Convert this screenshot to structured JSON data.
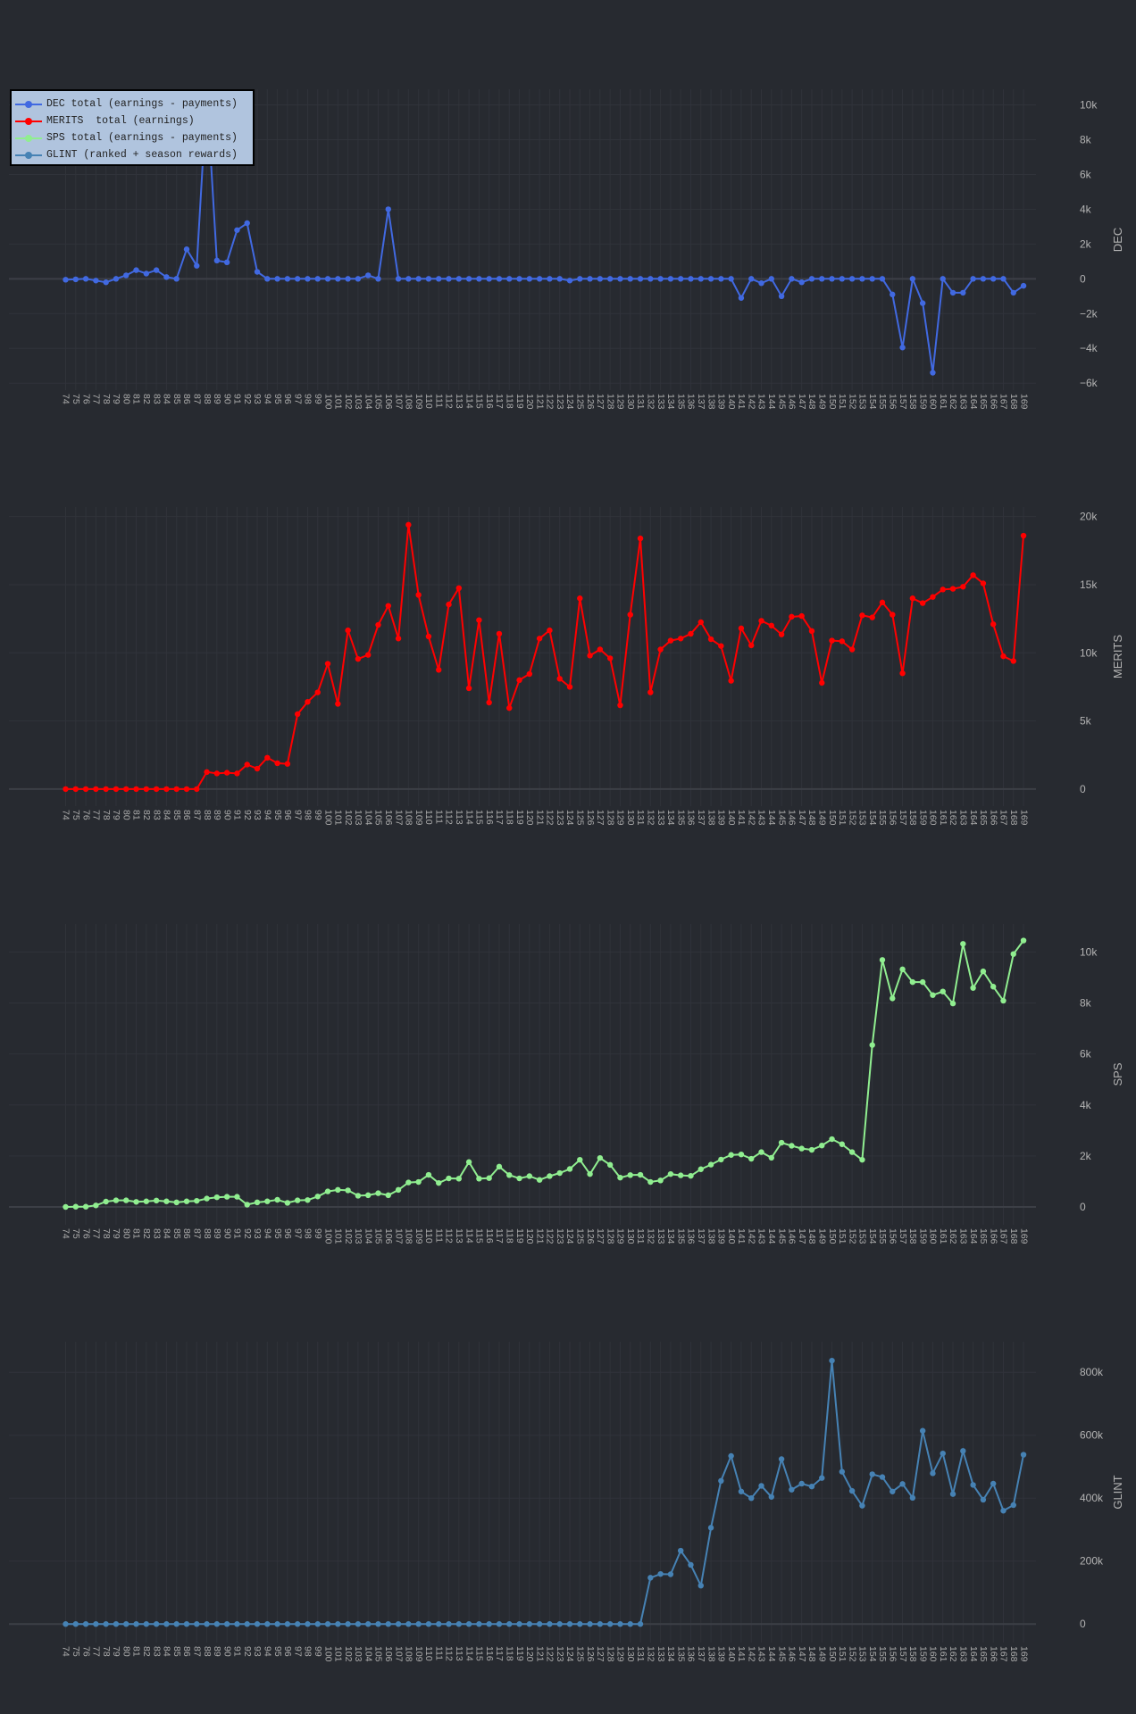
{
  "legend": [
    {
      "label": "DEC total (earnings - payments)",
      "color": "#4169e1"
    },
    {
      "label": "MERITS  total (earnings)",
      "color": "#ff0000"
    },
    {
      "label": "SPS total (earnings - payments)",
      "color": "#90ee90"
    },
    {
      "label": "GLINT (ranked + season rewards)",
      "color": "#4682b4"
    }
  ],
  "chart_data": [
    {
      "type": "line",
      "ylabel": "DEC",
      "color": "#4169e1",
      "grid": true,
      "legend": "top-left",
      "ylim": [
        -6400,
        10900
      ],
      "yticks": [
        {
          "v": -6000,
          "label": "−6k"
        },
        {
          "v": -4000,
          "label": "−4k"
        },
        {
          "v": -2000,
          "label": "−2k"
        },
        {
          "v": 0,
          "label": "0"
        },
        {
          "v": 2000,
          "label": "2k"
        },
        {
          "v": 4000,
          "label": "4k"
        },
        {
          "v": 6000,
          "label": "6k"
        },
        {
          "v": 8000,
          "label": "8k"
        },
        {
          "v": 10000,
          "label": "10k"
        }
      ],
      "values": [
        -50,
        -30,
        0,
        -100,
        -200,
        0,
        200,
        500,
        300,
        500,
        100,
        0,
        1700,
        750,
        10700,
        1050,
        950,
        2800,
        3200,
        400,
        0,
        0,
        0,
        0,
        0,
        0,
        0,
        0,
        0,
        0,
        200,
        0,
        4000,
        0,
        0,
        0,
        0,
        0,
        0,
        0,
        0,
        0,
        0,
        0,
        0,
        0,
        0,
        0,
        0,
        0,
        -100,
        0,
        0,
        0,
        0,
        0,
        0,
        0,
        0,
        0,
        0,
        0,
        0,
        0,
        0,
        0,
        0,
        -1100,
        0,
        -250,
        0,
        -1000,
        0,
        -200,
        0,
        0,
        0,
        0,
        0,
        0,
        0,
        0,
        -900,
        -3950,
        0,
        -1400,
        -5400,
        0,
        -800,
        -800,
        0,
        0,
        0,
        0,
        -800,
        -400
      ]
    },
    {
      "type": "line",
      "ylabel": "MERITS",
      "color": "#ff0000",
      "grid": true,
      "ylim": [
        -1250,
        20700
      ],
      "yticks": [
        {
          "v": 0,
          "label": "0"
        },
        {
          "v": 5000,
          "label": "5k"
        },
        {
          "v": 10000,
          "label": "10k"
        },
        {
          "v": 15000,
          "label": "15k"
        },
        {
          "v": 20000,
          "label": "20k"
        }
      ],
      "values": [
        0,
        0,
        0,
        0,
        0,
        0,
        0,
        0,
        0,
        0,
        0,
        0,
        0,
        0,
        1250,
        1150,
        1200,
        1150,
        1800,
        1500,
        2300,
        1900,
        1850,
        5500,
        6400,
        7100,
        9200,
        6250,
        11650,
        9550,
        9850,
        12050,
        13450,
        11050,
        19400,
        14250,
        11200,
        8750,
        13550,
        14750,
        7400,
        12400,
        6350,
        11400,
        5950,
        8000,
        8450,
        11050,
        11650,
        8100,
        7500,
        14000,
        9800,
        10250,
        9600,
        6150,
        12800,
        18400,
        7100,
        10250,
        10900,
        11050,
        11400,
        12250,
        11000,
        10500,
        7950,
        11800,
        10550,
        12350,
        12000,
        11350,
        12650,
        12700,
        11600,
        7800,
        10900,
        10850,
        10250,
        12750,
        12600,
        13700,
        12800,
        8500,
        14000,
        13650,
        14100,
        14650,
        14700,
        14850,
        15700,
        15100,
        12100,
        9750,
        9400,
        18600
      ]
    },
    {
      "type": "line",
      "ylabel": "SPS",
      "color": "#90ee90",
      "grid": true,
      "ylim": [
        -700,
        11100
      ],
      "yticks": [
        {
          "v": 0,
          "label": "0"
        },
        {
          "v": 2000,
          "label": "2k"
        },
        {
          "v": 4000,
          "label": "4k"
        },
        {
          "v": 6000,
          "label": "6k"
        },
        {
          "v": 8000,
          "label": "8k"
        },
        {
          "v": 10000,
          "label": "10k"
        }
      ],
      "values": [
        0,
        10,
        10,
        60,
        210,
        260,
        260,
        200,
        220,
        250,
        220,
        180,
        220,
        240,
        330,
        380,
        400,
        400,
        90,
        180,
        220,
        280,
        160,
        260,
        270,
        410,
        610,
        670,
        650,
        440,
        460,
        540,
        460,
        670,
        960,
        980,
        1260,
        940,
        1120,
        1110,
        1760,
        1110,
        1130,
        1580,
        1250,
        1120,
        1210,
        1060,
        1210,
        1330,
        1490,
        1850,
        1290,
        1920,
        1650,
        1150,
        1250,
        1260,
        980,
        1040,
        1290,
        1240,
        1220,
        1480,
        1660,
        1860,
        2040,
        2060,
        1890,
        2150,
        1930,
        2520,
        2400,
        2290,
        2240,
        2410,
        2660,
        2460,
        2150,
        1850,
        6350,
        9690,
        8180,
        9320,
        8820,
        8820,
        8310,
        8450,
        7980,
        10320,
        8590,
        9240,
        8640,
        8090,
        9920,
        10450
      ]
    },
    {
      "type": "line",
      "ylabel": "GLINT",
      "color": "#4682b4",
      "grid": true,
      "ylim": [
        -59000,
        897000
      ],
      "yticks": [
        {
          "v": 0,
          "label": "0"
        },
        {
          "v": 200000,
          "label": "200k"
        },
        {
          "v": 400000,
          "label": "400k"
        },
        {
          "v": 600000,
          "label": "600k"
        },
        {
          "v": 800000,
          "label": "800k"
        }
      ],
      "values": [
        0,
        0,
        0,
        0,
        0,
        0,
        0,
        0,
        0,
        0,
        0,
        0,
        0,
        0,
        0,
        0,
        0,
        0,
        0,
        0,
        0,
        0,
        0,
        0,
        0,
        0,
        0,
        0,
        0,
        0,
        0,
        0,
        0,
        0,
        0,
        0,
        0,
        0,
        0,
        0,
        0,
        0,
        0,
        0,
        0,
        0,
        0,
        0,
        0,
        0,
        0,
        0,
        0,
        0,
        0,
        0,
        0,
        0,
        147000,
        159000,
        158000,
        233000,
        188000,
        122000,
        306000,
        455000,
        534000,
        421000,
        400000,
        439000,
        404000,
        524000,
        427000,
        446000,
        437000,
        464000,
        837000,
        484000,
        423000,
        376000,
        476000,
        467000,
        421000,
        445000,
        401000,
        614000,
        479000,
        542000,
        413000,
        550000,
        442000,
        395000,
        446000,
        360000,
        378000,
        538000
      ]
    }
  ],
  "x": [
    74,
    75,
    76,
    77,
    78,
    79,
    80,
    81,
    82,
    83,
    84,
    85,
    86,
    87,
    88,
    89,
    90,
    91,
    92,
    93,
    94,
    95,
    96,
    97,
    98,
    99,
    100,
    101,
    102,
    103,
    104,
    105,
    106,
    107,
    108,
    109,
    110,
    111,
    112,
    113,
    114,
    115,
    116,
    117,
    118,
    119,
    120,
    121,
    122,
    123,
    124,
    125,
    126,
    127,
    128,
    129,
    130,
    131,
    132,
    133,
    134,
    135,
    136,
    137,
    138,
    139,
    140,
    141,
    142,
    143,
    144,
    145,
    146,
    147,
    148,
    149,
    150,
    151,
    152,
    153,
    154,
    155,
    156,
    157,
    158,
    159,
    160,
    161,
    162,
    163,
    164,
    165,
    166,
    167,
    168,
    169
  ]
}
